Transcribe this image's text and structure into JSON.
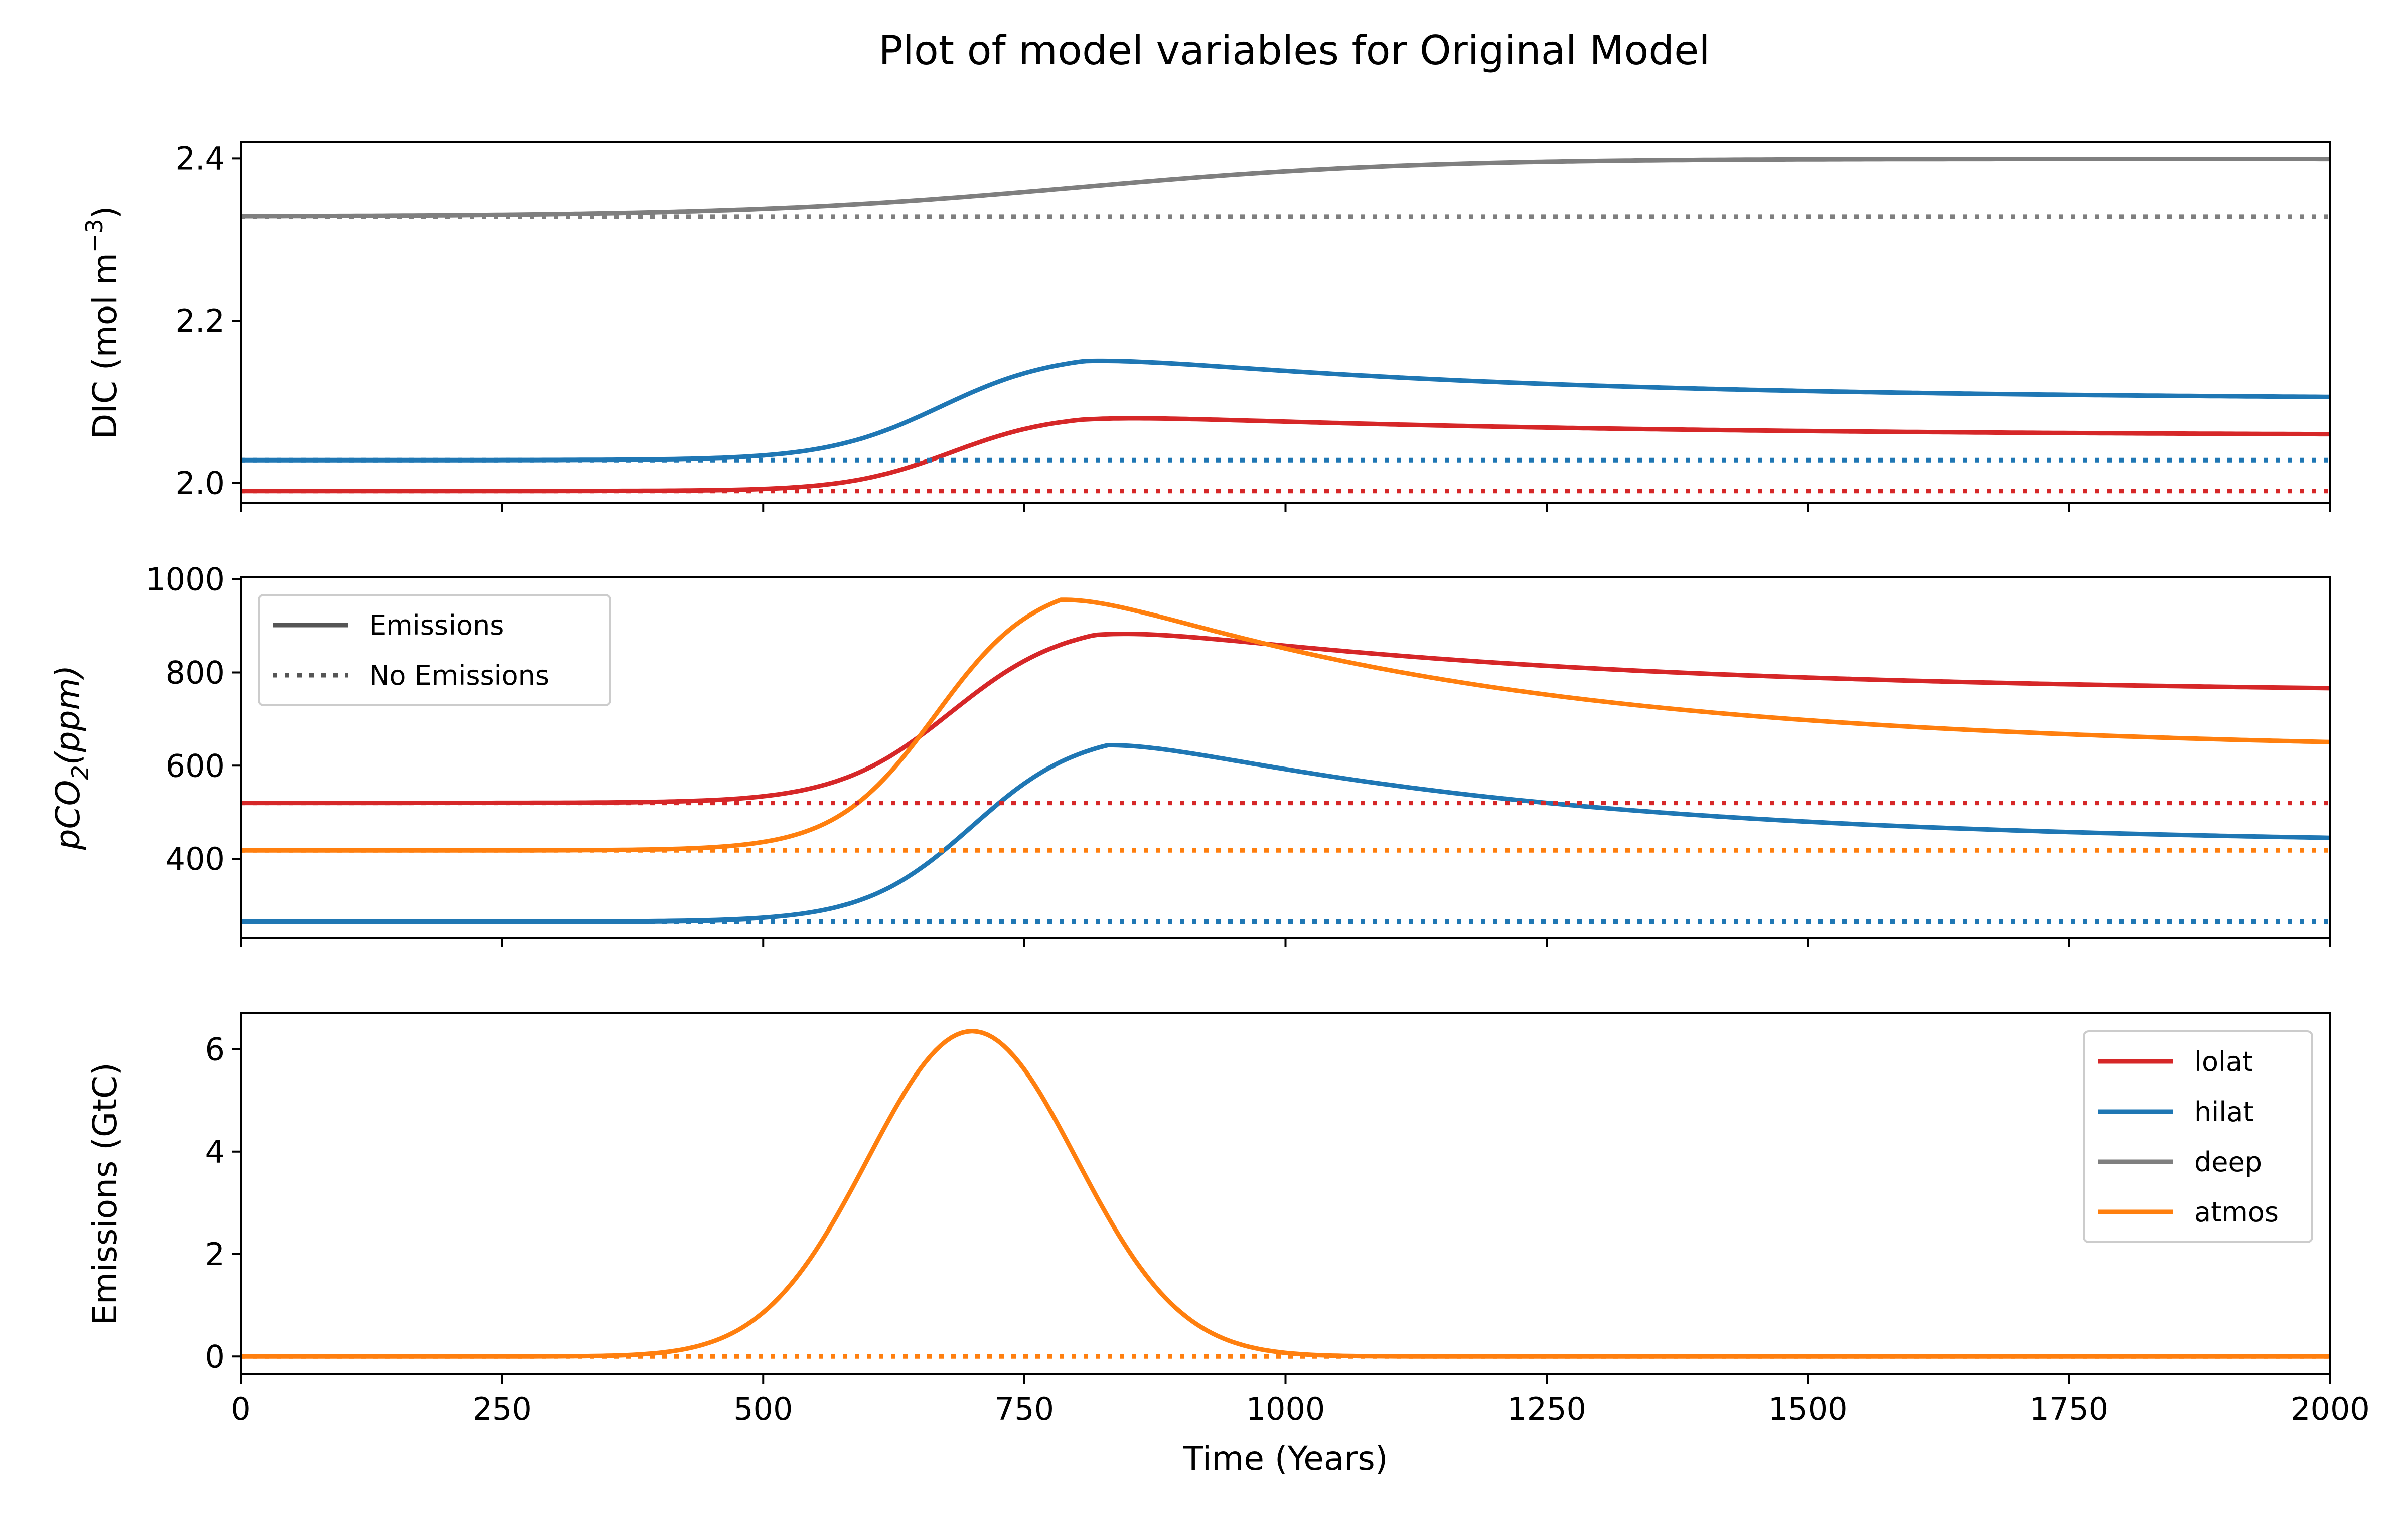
{
  "title": "Plot of model variables for Original Model",
  "colors": {
    "lolat": "#d62728",
    "hilat": "#1f77b4",
    "deep": "#7f7f7f",
    "atmos": "#ff7f0e",
    "legend_line": "#555555"
  },
  "chart_data": [
    {
      "type": "line",
      "id": "dic",
      "ylabel": "DIC (mol m",
      "ylabel_sup": "−3",
      "ylabel_tail": ")",
      "xlim": [
        0,
        2000
      ],
      "ylim": [
        1.975,
        2.42
      ],
      "yticks": [
        {
          "v": 2.0,
          "label": "2.0"
        },
        {
          "v": 2.2,
          "label": "2.2"
        },
        {
          "v": 2.4,
          "label": "2.4"
        }
      ],
      "xticks_labeled": false,
      "legend": null,
      "series": [
        {
          "key": "deep",
          "name": "deep",
          "style": "solid",
          "base": 2.328,
          "peak": 2.4,
          "final": 2.397,
          "t0": 800,
          "w": 160,
          "decay": 3000
        },
        {
          "key": "hilat",
          "name": "hilat",
          "style": "solid",
          "base": 2.028,
          "peak": 2.16,
          "final": 2.103,
          "t0": 670,
          "w": 55,
          "decay": 400
        },
        {
          "key": "lolat",
          "name": "lolat",
          "style": "solid",
          "base": 1.99,
          "peak": 2.085,
          "final": 2.058,
          "t0": 680,
          "w": 50,
          "decay": 450
        },
        {
          "key": "deep",
          "name": "deep",
          "style": "dotted",
          "constant": 2.328
        },
        {
          "key": "hilat",
          "name": "hilat",
          "style": "dotted",
          "constant": 2.028
        },
        {
          "key": "lolat",
          "name": "lolat",
          "style": "dotted",
          "constant": 1.99
        }
      ]
    },
    {
      "type": "line",
      "id": "pco2",
      "ylabel": "pCO",
      "ylabel_sub": "2",
      "ylabel_tail": "(ppm)",
      "xlim": [
        0,
        2000
      ],
      "ylim": [
        230,
        1005
      ],
      "yticks": [
        {
          "v": 400,
          "label": "400"
        },
        {
          "v": 600,
          "label": "600"
        },
        {
          "v": 800,
          "label": "800"
        },
        {
          "v": 1000,
          "label": "1000"
        }
      ],
      "xticks_labeled": false,
      "legend": {
        "placement": "upper-left",
        "entries": [
          {
            "label": "Emissions",
            "style": "solid"
          },
          {
            "label": "No Emissions",
            "style": "dotted"
          }
        ]
      },
      "series": [
        {
          "key": "lolat",
          "name": "lolat",
          "style": "solid",
          "base": 520,
          "peak": 910,
          "final": 755,
          "t0": 680,
          "w": 55,
          "decay": 450
        },
        {
          "key": "atmos",
          "name": "atmos",
          "style": "solid",
          "base": 418,
          "peak": 1000,
          "final": 630,
          "t0": 665,
          "w": 48,
          "decay": 420
        },
        {
          "key": "hilat",
          "name": "hilat",
          "style": "solid",
          "base": 265,
          "peak": 675,
          "final": 430,
          "t0": 700,
          "w": 52,
          "decay": 420
        },
        {
          "key": "lolat",
          "name": "lolat",
          "style": "dotted",
          "constant": 520
        },
        {
          "key": "atmos",
          "name": "atmos",
          "style": "dotted",
          "constant": 418
        },
        {
          "key": "hilat",
          "name": "hilat",
          "style": "dotted",
          "constant": 265
        }
      ]
    },
    {
      "type": "line",
      "id": "emissions",
      "ylabel": "Emissions (GtC)",
      "xlim": [
        0,
        2000
      ],
      "ylim": [
        -0.35,
        6.7
      ],
      "yticks": [
        {
          "v": 0,
          "label": "0"
        },
        {
          "v": 2,
          "label": "2"
        },
        {
          "v": 4,
          "label": "4"
        },
        {
          "v": 6,
          "label": "6"
        }
      ],
      "xticks_labeled": true,
      "xticks": [
        {
          "v": 0,
          "label": "0"
        },
        {
          "v": 250,
          "label": "250"
        },
        {
          "v": 500,
          "label": "500"
        },
        {
          "v": 750,
          "label": "750"
        },
        {
          "v": 1000,
          "label": "1000"
        },
        {
          "v": 1250,
          "label": "1250"
        },
        {
          "v": 1500,
          "label": "1500"
        },
        {
          "v": 1750,
          "label": "1750"
        },
        {
          "v": 2000,
          "label": "2000"
        }
      ],
      "xlabel": "Time (Years)",
      "legend": {
        "placement": "upper-right",
        "entries": [
          {
            "label": "lolat",
            "key": "lolat"
          },
          {
            "label": "hilat",
            "key": "hilat"
          },
          {
            "label": "deep",
            "key": "deep"
          },
          {
            "label": "atmos",
            "key": "atmos"
          }
        ]
      },
      "series": [
        {
          "key": "atmos",
          "name": "atmos",
          "style": "solid",
          "gaussian": {
            "amp": 6.35,
            "center": 700,
            "sigma": 100
          }
        },
        {
          "key": "atmos",
          "name": "atmos",
          "style": "dotted",
          "constant": 0
        }
      ]
    }
  ]
}
